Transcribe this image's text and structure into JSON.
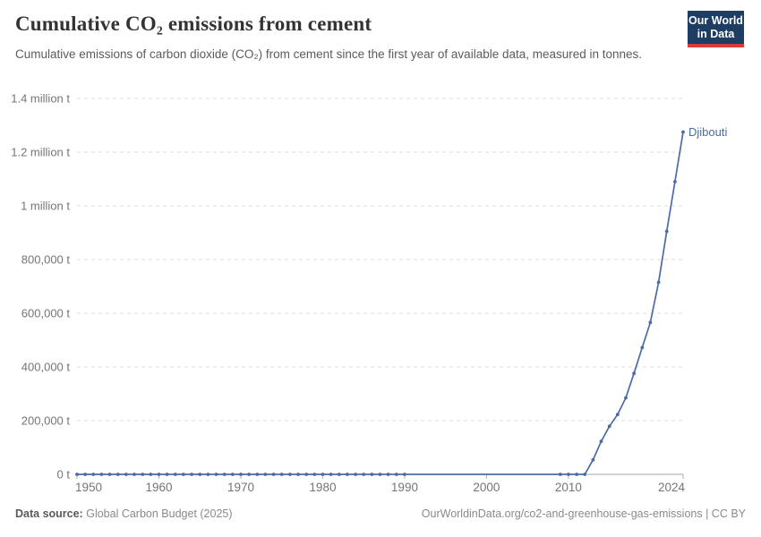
{
  "header": {
    "title": "Cumulative CO₂ emissions from cement",
    "subtitle": "Cumulative emissions of carbon dioxide (CO₂) from cement since the first year of available data, measured in tonnes.",
    "logo": {
      "line1": "Our World",
      "line2": "in Data",
      "bg_color": "#1d3d63",
      "accent_color": "#d73a3f"
    }
  },
  "footer": {
    "datasource_label": "Data source:",
    "datasource_value": "Global Carbon Budget (2025)",
    "credit": "OurWorldinData.org/co2-and-greenhouse-gas-emissions | CC BY"
  },
  "chart_data": {
    "type": "line",
    "title": "Cumulative CO₂ emissions from cement",
    "xlabel": "",
    "ylabel": "",
    "xlim": [
      1950,
      2024
    ],
    "ylim": [
      0,
      1400000
    ],
    "grid": "horizontal-dashed",
    "legend_position": "end-of-line-label",
    "axis_color": "#a5a5a5",
    "gridline_color": "#dcdcdc",
    "tick_label_color": "#757575",
    "yticks": [
      {
        "v": 0,
        "label": "0 t"
      },
      {
        "v": 200000,
        "label": "200,000 t"
      },
      {
        "v": 400000,
        "label": "400,000 t"
      },
      {
        "v": 600000,
        "label": "600,000 t"
      },
      {
        "v": 800000,
        "label": "800,000 t"
      },
      {
        "v": 1000000,
        "label": "1 million t"
      },
      {
        "v": 1200000,
        "label": "1.2 million t"
      },
      {
        "v": 1400000,
        "label": "1.4 million t"
      }
    ],
    "xticks": [
      {
        "v": 1950,
        "label": "1950"
      },
      {
        "v": 1960,
        "label": "1960"
      },
      {
        "v": 1970,
        "label": "1970"
      },
      {
        "v": 1980,
        "label": "1980"
      },
      {
        "v": 1990,
        "label": "1990"
      },
      {
        "v": 2000,
        "label": "2000"
      },
      {
        "v": 2010,
        "label": "2010"
      },
      {
        "v": 2024,
        "label": "2024"
      }
    ],
    "series": [
      {
        "name": "Djibouti",
        "color": "#4c6ba5",
        "marker_gap_years": [
          1991,
          2008
        ],
        "points": [
          [
            1950,
            0
          ],
          [
            1951,
            0
          ],
          [
            1952,
            0
          ],
          [
            1953,
            0
          ],
          [
            1954,
            0
          ],
          [
            1955,
            0
          ],
          [
            1956,
            0
          ],
          [
            1957,
            0
          ],
          [
            1958,
            0
          ],
          [
            1959,
            0
          ],
          [
            1960,
            0
          ],
          [
            1961,
            0
          ],
          [
            1962,
            0
          ],
          [
            1963,
            0
          ],
          [
            1964,
            0
          ],
          [
            1965,
            0
          ],
          [
            1966,
            0
          ],
          [
            1967,
            0
          ],
          [
            1968,
            0
          ],
          [
            1969,
            0
          ],
          [
            1970,
            0
          ],
          [
            1971,
            0
          ],
          [
            1972,
            0
          ],
          [
            1973,
            0
          ],
          [
            1974,
            0
          ],
          [
            1975,
            0
          ],
          [
            1976,
            0
          ],
          [
            1977,
            0
          ],
          [
            1978,
            0
          ],
          [
            1979,
            0
          ],
          [
            1980,
            0
          ],
          [
            1981,
            0
          ],
          [
            1982,
            0
          ],
          [
            1983,
            0
          ],
          [
            1984,
            0
          ],
          [
            1985,
            0
          ],
          [
            1986,
            0
          ],
          [
            1987,
            0
          ],
          [
            1988,
            0
          ],
          [
            1989,
            0
          ],
          [
            1990,
            0
          ],
          [
            1991,
            0
          ],
          [
            1992,
            0
          ],
          [
            1993,
            0
          ],
          [
            1994,
            0
          ],
          [
            1995,
            0
          ],
          [
            1996,
            0
          ],
          [
            1997,
            0
          ],
          [
            1998,
            0
          ],
          [
            1999,
            0
          ],
          [
            2000,
            0
          ],
          [
            2001,
            0
          ],
          [
            2002,
            0
          ],
          [
            2003,
            0
          ],
          [
            2004,
            0
          ],
          [
            2005,
            0
          ],
          [
            2006,
            0
          ],
          [
            2007,
            0
          ],
          [
            2008,
            0
          ],
          [
            2009,
            0
          ],
          [
            2010,
            0
          ],
          [
            2011,
            0
          ],
          [
            2012,
            0
          ],
          [
            2013,
            54000
          ],
          [
            2014,
            123000
          ],
          [
            2015,
            179000
          ],
          [
            2016,
            223000
          ],
          [
            2017,
            285000
          ],
          [
            2018,
            376000
          ],
          [
            2019,
            472000
          ],
          [
            2020,
            566000
          ],
          [
            2021,
            715000
          ],
          [
            2022,
            905000
          ],
          [
            2023,
            1090000
          ],
          [
            2024,
            1275000
          ]
        ]
      }
    ]
  }
}
